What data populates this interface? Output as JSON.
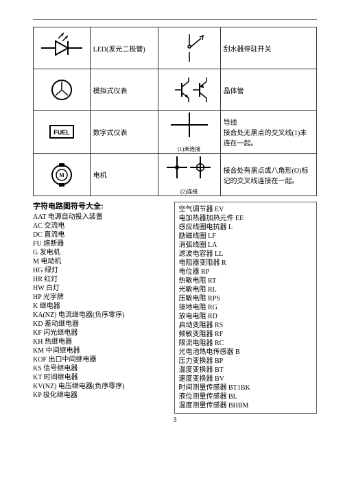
{
  "page": {
    "number": "3"
  },
  "symbols": {
    "rows": [
      {
        "left_label": "LED(发光二极管)",
        "right_label": "刮水器停驻开关",
        "left_icon": "led",
        "right_icon": "wiper_switch"
      },
      {
        "left_label": "模拟式仪表",
        "right_label": "晶体管",
        "left_icon": "analog_gauge",
        "right_icon": "transistors"
      },
      {
        "left_label": "数字式仪表",
        "right_label": "导线\n接合处无黑点的交叉线(1)未连在一起。",
        "left_icon": "digital_gauge",
        "right_icon": "cross_nojoin",
        "right_caption": "(1)未连接"
      },
      {
        "left_label": "电机",
        "right_label": "接合处有黑点或八角形(O)标记的交叉线连接在一起。",
        "left_icon": "motor",
        "right_icon": "cross_join",
        "right_caption": "(2)连接"
      }
    ]
  },
  "glossary": {
    "title": "字符电路图符号大全:",
    "left": [
      "AAT 电源自动投入装置",
      "AC 交流电",
      "DC 直流电",
      "FU 熔断器",
      "G 发电机",
      "M 电动机",
      "HG 绿灯",
      "HR 红灯",
      "HW 白灯",
      "HP 光字牌",
      "K 继电器",
      "KA(NZ) 电流继电器(负序零序)",
      "KD 差动继电器",
      "KF 闪光继电器",
      "KH 热继电器",
      "KM 中间继电器",
      "KOF 出口中间继电器",
      "KS 信号继电器",
      "KT 时间继电器",
      "KV(NZ) 电压继电器(负序零序)",
      "KP 极化继电器"
    ],
    "right": [
      "空气调节器 EV",
      "电加热器加热元件 EE",
      "感应线圈电抗器 L",
      "励磁线圈 LF",
      "消弧线圈 LA",
      "滤波电容器 LL",
      "电阻器变阻器 R",
      "电位器 RP",
      "热敏电阻 RT",
      "光敏电阻 RL",
      "压敏电阻 RPS",
      "接地电阻 RG",
      "放电电阻 RD",
      "启动变阻器 RS",
      "频敏变阻器 RF",
      "限流电阻器 RC",
      "光电池热电传感器 B",
      "压力变换器 BP",
      "温度变换器 BT",
      "速度变换器 BV",
      "时间测量传感器 BT1BK",
      "液位测量传感器 BL",
      "温度测量传感器 BHBM"
    ]
  }
}
